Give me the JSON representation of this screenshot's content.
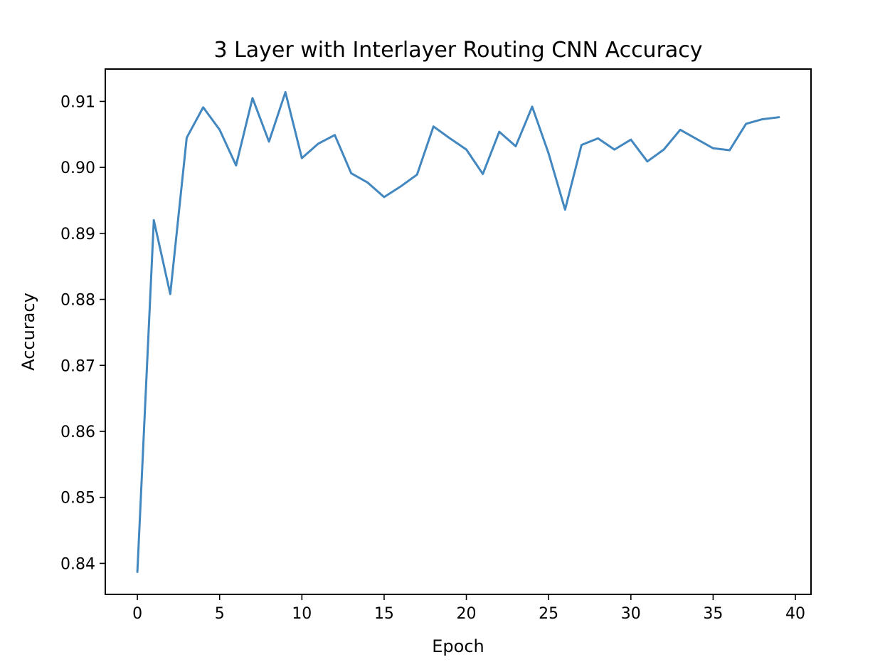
{
  "chart_data": {
    "type": "line",
    "title": "3 Layer with Interlayer Routing CNN Accuracy",
    "xlabel": "Epoch",
    "ylabel": "Accuracy",
    "xlim": [
      -1.95,
      40.95
    ],
    "ylim": [
      0.8353,
      0.9149
    ],
    "xticks": [
      0,
      5,
      10,
      15,
      20,
      25,
      30,
      35,
      40
    ],
    "xtick_labels": [
      "0",
      "5",
      "10",
      "15",
      "20",
      "25",
      "30",
      "35",
      "40"
    ],
    "yticks": [
      0.84,
      0.85,
      0.86,
      0.87,
      0.88,
      0.89,
      0.9,
      0.91
    ],
    "ytick_labels": [
      "0.84",
      "0.85",
      "0.86",
      "0.87",
      "0.88",
      "0.89",
      "0.90",
      "0.91"
    ],
    "grid": false,
    "series": [
      {
        "color": "#4287bf",
        "x": [
          0,
          1,
          2,
          3,
          4,
          5,
          6,
          7,
          8,
          9,
          10,
          11,
          12,
          13,
          14,
          15,
          16,
          17,
          18,
          19,
          20,
          21,
          22,
          23,
          24,
          25,
          26,
          27,
          28,
          29,
          30,
          31,
          32,
          33,
          34,
          35,
          36,
          37,
          38,
          39
        ],
        "y": [
          0.8387,
          0.892,
          0.8808,
          0.9045,
          0.9091,
          0.9057,
          0.9003,
          0.9105,
          0.9039,
          0.9114,
          0.9014,
          0.9036,
          0.9049,
          0.8991,
          0.8977,
          0.8955,
          0.8971,
          0.8989,
          0.9062,
          0.9044,
          0.9027,
          0.899,
          0.9054,
          0.9032,
          0.9092,
          0.9021,
          0.8936,
          0.9034,
          0.9044,
          0.9027,
          0.9042,
          0.9009,
          0.9027,
          0.9057,
          0.9043,
          0.9029,
          0.9026,
          0.9066,
          0.9073,
          0.9076
        ]
      }
    ]
  }
}
